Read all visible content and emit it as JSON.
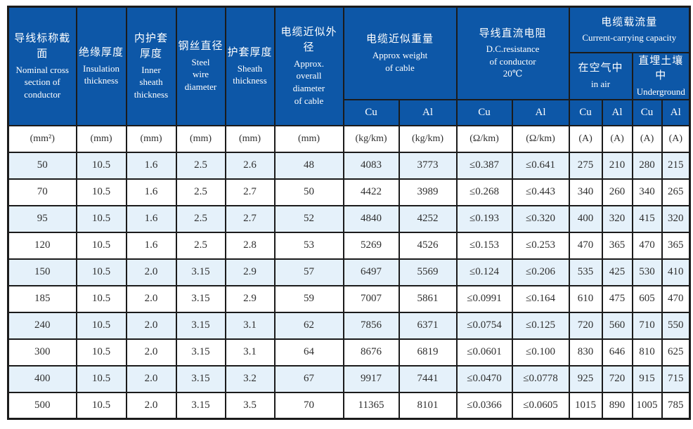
{
  "table": {
    "columns": [
      {
        "zh": "导线标称截面",
        "en": "Nominal cross\nsection of\nconductor"
      },
      {
        "zh": "绝缘厚度",
        "en": "Insulation\nthickness"
      },
      {
        "zh": "内护套\n厚度",
        "en": "Inner\nsheath\nthickness"
      },
      {
        "zh": "钢丝直径",
        "en": "Steel\nwire\ndiameter"
      },
      {
        "zh": "护套厚度",
        "en": "Sheath\nthickness"
      },
      {
        "zh": "电缆近似外径",
        "en": "Approx.\noverall\ndiameter\nof cable"
      }
    ],
    "weight_group": {
      "zh": "电缆近似重量",
      "en": "Approx weight\nof cable"
    },
    "resistance_group": {
      "zh": "导线直流电阻",
      "en": "D.C.resistance\nof conductor\n20℃"
    },
    "capacity_group": {
      "zh": "电缆载流量",
      "en": "Current-carrying capacity",
      "subgroups": [
        {
          "zh": "在空气中",
          "en": "in air"
        },
        {
          "zh": "直埋土壤中",
          "en": "Underground"
        }
      ]
    },
    "conductor_headers": [
      "Cu",
      "Al",
      "Cu",
      "Al",
      "Cu",
      "Al",
      "Cu",
      "Al"
    ],
    "units": [
      "(mm²)",
      "(mm)",
      "(mm)",
      "(mm)",
      "(mm)",
      "(mm)",
      "(kg/km)",
      "(kg/km)",
      "(Ω/km)",
      "(Ω/km)",
      "(A)",
      "(A)",
      "(A)",
      "(A)"
    ],
    "rows": [
      [
        "50",
        "10.5",
        "1.6",
        "2.5",
        "2.6",
        "48",
        "4083",
        "3773",
        "≤0.387",
        "≤0.641",
        "275",
        "210",
        "280",
        "215"
      ],
      [
        "70",
        "10.5",
        "1.6",
        "2.5",
        "2.7",
        "50",
        "4422",
        "3989",
        "≤0.268",
        "≤0.443",
        "340",
        "260",
        "340",
        "265"
      ],
      [
        "95",
        "10.5",
        "1.6",
        "2.5",
        "2.7",
        "52",
        "4840",
        "4252",
        "≤0.193",
        "≤0.320",
        "400",
        "320",
        "415",
        "320"
      ],
      [
        "120",
        "10.5",
        "1.6",
        "2.5",
        "2.8",
        "53",
        "5269",
        "4526",
        "≤0.153",
        "≤0.253",
        "470",
        "365",
        "470",
        "365"
      ],
      [
        "150",
        "10.5",
        "2.0",
        "3.15",
        "2.9",
        "57",
        "6497",
        "5569",
        "≤0.124",
        "≤0.206",
        "535",
        "425",
        "530",
        "410"
      ],
      [
        "185",
        "10.5",
        "2.0",
        "3.15",
        "2.9",
        "59",
        "7007",
        "5861",
        "≤0.0991",
        "≤0.164",
        "610",
        "475",
        "605",
        "470"
      ],
      [
        "240",
        "10.5",
        "2.0",
        "3.15",
        "3.1",
        "62",
        "7856",
        "6371",
        "≤0.0754",
        "≤0.125",
        "720",
        "560",
        "710",
        "550"
      ],
      [
        "300",
        "10.5",
        "2.0",
        "3.15",
        "3.1",
        "64",
        "8676",
        "6819",
        "≤0.0601",
        "≤0.100",
        "830",
        "646",
        "810",
        "625"
      ],
      [
        "400",
        "10.5",
        "2.0",
        "3.15",
        "3.2",
        "67",
        "9917",
        "7441",
        "≤0.0470",
        "≤0.0778",
        "925",
        "720",
        "915",
        "715"
      ],
      [
        "500",
        "10.5",
        "2.0",
        "3.15",
        "3.5",
        "70",
        "11365",
        "8101",
        "≤0.0366",
        "≤0.0605",
        "1015",
        "890",
        "1005",
        "785"
      ]
    ]
  },
  "colors": {
    "header_bg": "#0d57a7",
    "row_alt_bg": "#e5f1fa",
    "border": "#1b1b1b",
    "text": "#2f2f2f",
    "header_text": "#ffffff"
  }
}
